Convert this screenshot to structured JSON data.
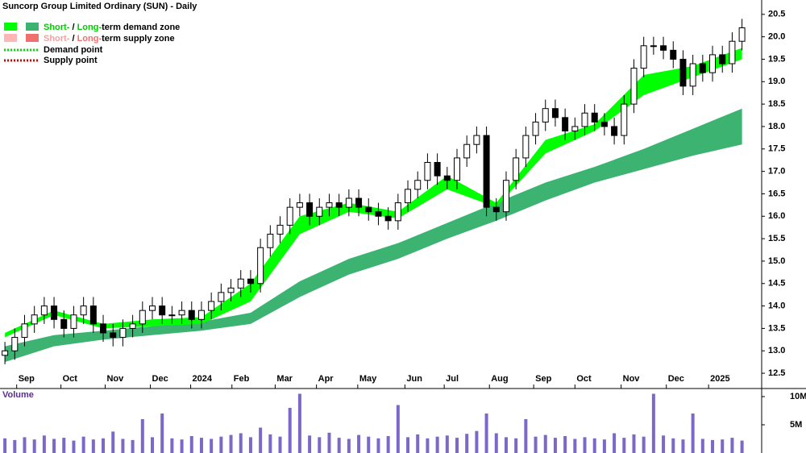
{
  "chart_data": [
    {
      "type": "candlestick",
      "title": "Suncorp Group Limited Ordinary (SUN) - Daily",
      "legend": [
        {
          "parts": [
            "Short-",
            " / ",
            "Long-",
            "term demand zone"
          ]
        },
        {
          "parts": [
            "Short-",
            " / ",
            "Long-",
            "term supply zone"
          ]
        },
        {
          "parts": [
            "Demand point"
          ]
        },
        {
          "parts": [
            "Supply point"
          ]
        }
      ],
      "x": [
        0,
        1,
        2,
        3,
        4,
        5,
        6,
        7,
        8,
        9,
        10,
        11,
        12,
        13,
        14,
        15,
        16,
        17,
        18,
        19,
        20,
        21,
        22,
        23,
        24,
        25,
        26,
        27,
        28,
        29,
        30,
        31,
        32,
        33,
        34,
        35,
        36,
        37,
        38,
        39,
        40,
        41,
        42,
        43,
        44,
        45,
        46,
        47,
        48,
        49,
        50,
        51,
        52,
        53,
        54,
        55,
        56,
        57,
        58,
        59,
        60,
        61,
        62,
        63,
        64,
        65,
        66,
        67,
        68,
        69,
        70,
        71,
        72,
        73,
        74,
        75
      ],
      "open": [
        12.9,
        13.0,
        13.3,
        13.6,
        13.8,
        14.0,
        13.7,
        13.5,
        13.8,
        14.0,
        13.6,
        13.4,
        13.3,
        13.5,
        13.6,
        13.9,
        14.0,
        13.8,
        13.8,
        13.9,
        13.7,
        13.9,
        14.1,
        14.3,
        14.4,
        14.6,
        14.5,
        15.3,
        15.6,
        15.8,
        16.2,
        16.3,
        16.0,
        16.2,
        16.3,
        16.2,
        16.4,
        16.2,
        16.1,
        16.0,
        15.9,
        16.3,
        16.6,
        16.8,
        17.2,
        16.9,
        16.8,
        17.3,
        17.6,
        17.8,
        16.2,
        16.1,
        16.8,
        17.3,
        17.8,
        18.1,
        18.4,
        18.2,
        17.9,
        18.0,
        18.3,
        18.1,
        18.0,
        17.8,
        18.5,
        19.3,
        19.8,
        19.8,
        19.7,
        19.5,
        18.9,
        19.4,
        19.2,
        19.6,
        19.4,
        19.9
      ],
      "high": [
        13.2,
        13.5,
        13.8,
        14.0,
        14.2,
        14.2,
        13.9,
        14.0,
        14.2,
        14.2,
        13.8,
        13.6,
        13.7,
        13.8,
        14.1,
        14.2,
        14.2,
        14.0,
        14.1,
        14.1,
        14.1,
        14.3,
        14.5,
        14.6,
        14.8,
        14.8,
        15.5,
        15.8,
        16.0,
        16.4,
        16.5,
        16.5,
        16.4,
        16.5,
        16.5,
        16.6,
        16.6,
        16.4,
        16.3,
        16.2,
        16.5,
        16.8,
        17.0,
        17.4,
        17.4,
        17.1,
        17.5,
        17.8,
        18.0,
        18.0,
        16.4,
        17.0,
        17.5,
        18.0,
        18.3,
        18.6,
        18.6,
        18.4,
        18.2,
        18.5,
        18.5,
        18.3,
        18.2,
        18.7,
        19.5,
        20.0,
        20.0,
        20.0,
        19.9,
        19.7,
        19.6,
        19.6,
        19.8,
        19.8,
        20.1,
        20.4
      ],
      "low": [
        12.7,
        12.8,
        13.1,
        13.4,
        13.6,
        13.5,
        13.3,
        13.3,
        13.6,
        13.4,
        13.2,
        13.1,
        13.1,
        13.3,
        13.4,
        13.7,
        13.6,
        13.6,
        13.6,
        13.5,
        13.5,
        13.7,
        13.9,
        14.1,
        14.2,
        14.3,
        14.3,
        15.1,
        15.4,
        15.6,
        16.0,
        15.8,
        15.8,
        16.0,
        16.0,
        16.0,
        16.0,
        15.9,
        15.8,
        15.7,
        15.7,
        16.1,
        16.4,
        16.6,
        16.7,
        16.6,
        16.6,
        17.1,
        17.4,
        16.0,
        15.9,
        15.9,
        16.6,
        17.1,
        17.6,
        17.9,
        18.0,
        17.7,
        17.7,
        17.8,
        17.9,
        17.8,
        17.6,
        17.6,
        18.3,
        19.1,
        19.6,
        19.5,
        19.3,
        18.7,
        18.7,
        19.0,
        19.0,
        19.2,
        19.2,
        19.7
      ],
      "close": [
        13.0,
        13.3,
        13.6,
        13.8,
        14.0,
        13.7,
        13.5,
        13.8,
        14.0,
        13.6,
        13.4,
        13.3,
        13.5,
        13.6,
        13.9,
        14.0,
        13.8,
        13.8,
        13.9,
        13.7,
        13.9,
        14.1,
        14.3,
        14.4,
        14.6,
        14.5,
        15.3,
        15.6,
        15.8,
        16.2,
        16.3,
        16.0,
        16.2,
        16.3,
        16.2,
        16.4,
        16.2,
        16.1,
        16.0,
        15.9,
        16.3,
        16.6,
        16.8,
        17.2,
        16.9,
        16.8,
        17.3,
        17.6,
        17.8,
        16.2,
        16.1,
        16.8,
        17.3,
        17.8,
        18.1,
        18.4,
        18.2,
        17.9,
        18.0,
        18.3,
        18.1,
        18.0,
        17.8,
        18.5,
        19.3,
        19.8,
        19.8,
        19.7,
        19.5,
        18.9,
        19.4,
        19.2,
        19.6,
        19.4,
        19.9,
        20.2
      ],
      "zones": [
        {
          "color": "#3cb371",
          "x": [
            0,
            5,
            10,
            15,
            20,
            25,
            30,
            35,
            40,
            45,
            50,
            55,
            60,
            65,
            70,
            75
          ],
          "lower": [
            12.75,
            13.1,
            13.25,
            13.35,
            13.45,
            13.6,
            14.2,
            14.7,
            15.05,
            15.5,
            15.9,
            16.35,
            16.75,
            17.05,
            17.35,
            17.6
          ],
          "upper": [
            13.1,
            13.35,
            13.45,
            13.55,
            13.65,
            13.85,
            14.55,
            15.05,
            15.4,
            15.85,
            16.3,
            16.75,
            17.1,
            17.5,
            17.95,
            18.4
          ]
        },
        {
          "color": "#00ff00",
          "x": [
            0,
            5,
            10,
            15,
            20,
            25,
            30,
            35,
            40,
            45,
            50,
            55,
            60,
            65,
            70,
            75
          ],
          "lower": [
            13.3,
            13.8,
            13.5,
            13.55,
            13.6,
            14.1,
            15.6,
            16.1,
            15.95,
            16.6,
            16.2,
            17.4,
            17.9,
            18.7,
            19.1,
            19.5
          ],
          "upper": [
            13.4,
            13.9,
            13.6,
            13.7,
            13.75,
            14.5,
            16.0,
            16.3,
            16.1,
            16.9,
            16.3,
            17.7,
            18.05,
            19.15,
            19.35,
            19.75
          ]
        }
      ],
      "xlim": [
        -0.5,
        77
      ],
      "xticks": [
        {
          "value": 1.2,
          "label": "Sep"
        },
        {
          "value": 5.7,
          "label": "Oct"
        },
        {
          "value": 10.2,
          "label": "Nov"
        },
        {
          "value": 14.8,
          "label": "Dec"
        },
        {
          "value": 18.9,
          "label": "2024"
        },
        {
          "value": 23.1,
          "label": "Feb"
        },
        {
          "value": 27.5,
          "label": "Mar"
        },
        {
          "value": 31.7,
          "label": "Apr"
        },
        {
          "value": 35.9,
          "label": "May"
        },
        {
          "value": 40.7,
          "label": "Jun"
        },
        {
          "value": 44.7,
          "label": "Jul"
        },
        {
          "value": 49.3,
          "label": "Aug"
        },
        {
          "value": 53.8,
          "label": "Sep"
        },
        {
          "value": 58.0,
          "label": "Oct"
        },
        {
          "value": 62.7,
          "label": "Nov"
        },
        {
          "value": 67.3,
          "label": "Dec"
        },
        {
          "value": 71.6,
          "label": "2025"
        }
      ],
      "ylim": [
        12.16,
        20.82
      ],
      "yticks": [
        12.5,
        {
          "value": 13,
          "label": "13.0"
        },
        13.5,
        {
          "value": 14,
          "label": "14.0"
        },
        14.5,
        {
          "value": 15,
          "label": "15.0"
        },
        15.5,
        {
          "value": 16,
          "label": "16.0"
        },
        16.5,
        {
          "value": 17,
          "label": "17.0"
        },
        17.5,
        {
          "value": 18,
          "label": "18.0"
        },
        18.5,
        {
          "value": 19,
          "label": "19.0"
        },
        19.5,
        {
          "value": 20,
          "label": "20.0"
        },
        20.5
      ]
    },
    {
      "type": "bar",
      "title": "Volume",
      "color": "#7b68c8",
      "values": [
        2600000,
        2300000,
        2800000,
        2400000,
        3100000,
        2500000,
        2700000,
        2200000,
        2900000,
        2400000,
        2600000,
        3800000,
        2500000,
        2300000,
        6000000,
        2800000,
        7000000,
        2600000,
        2400000,
        3000000,
        2700000,
        2500000,
        2900000,
        3200000,
        3500000,
        2800000,
        4500000,
        3300000,
        2900000,
        8000000,
        10500000,
        3100000,
        2800000,
        3600000,
        2700000,
        2500000,
        3200000,
        2900000,
        2600000,
        3000000,
        8500000,
        2800000,
        3300000,
        2600000,
        2900000,
        3100000,
        2700000,
        3400000,
        3900000,
        7000000,
        3500000,
        2800000,
        2600000,
        6000000,
        2900000,
        3200000,
        2700000,
        3000000,
        2500000,
        2800000,
        2600000,
        2400000,
        3500000,
        2700000,
        3300000,
        2900000,
        10500000,
        3100000,
        2600000,
        2400000,
        7000000,
        2500000,
        2300000,
        2400000,
        2700000,
        2200000
      ],
      "ylim": [
        0,
        10860000
      ],
      "yticks": [
        {
          "value": 5000000,
          "label": "5M"
        },
        {
          "value": 10000000,
          "label": "10M"
        }
      ]
    }
  ]
}
